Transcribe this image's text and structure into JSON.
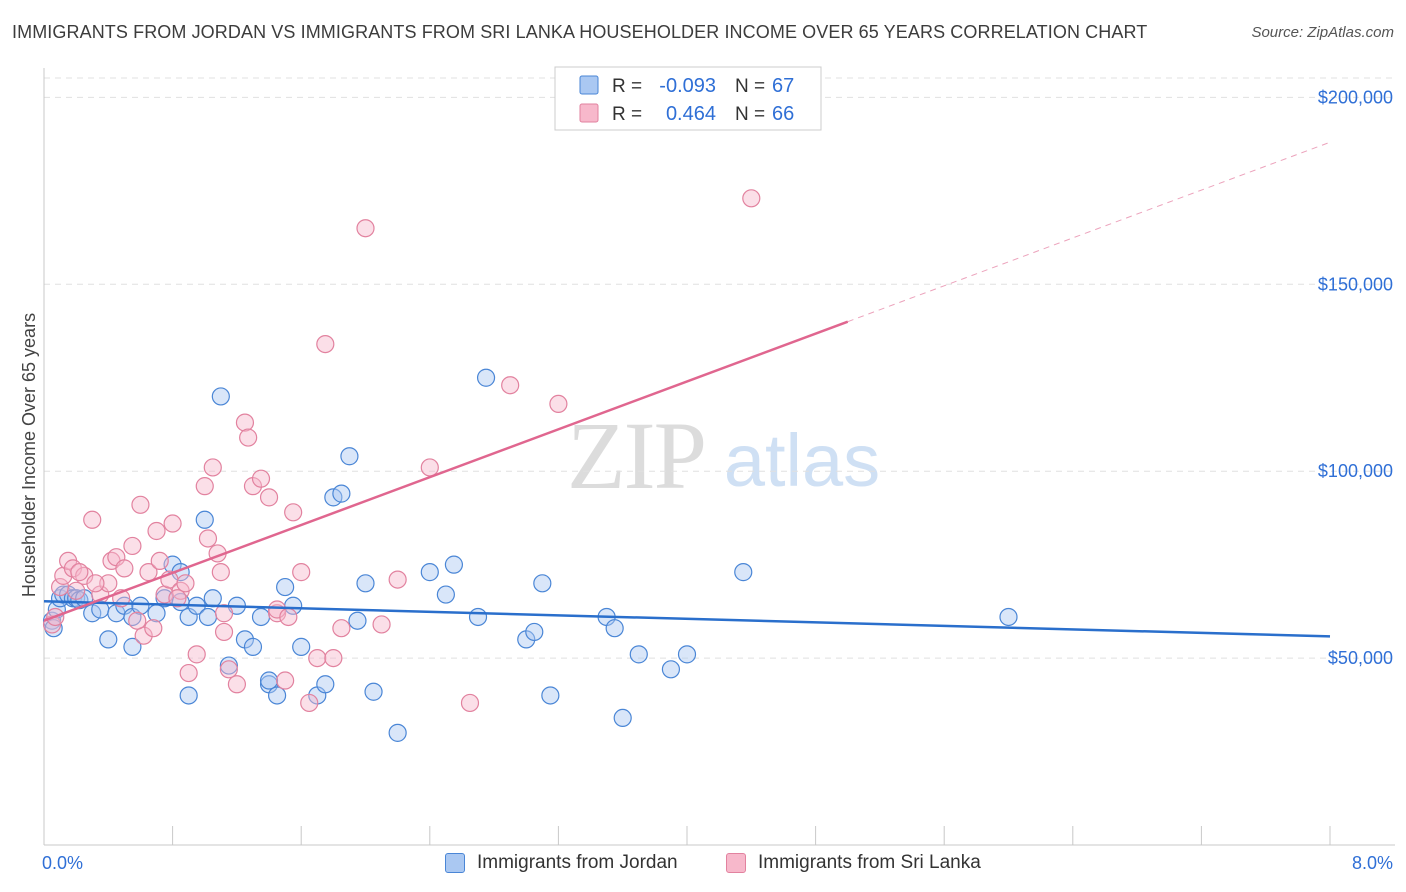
{
  "title": "IMMIGRANTS FROM JORDAN VS IMMIGRANTS FROM SRI LANKA HOUSEHOLDER INCOME OVER 65 YEARS CORRELATION CHART",
  "source": "Source: ZipAtlas.com",
  "watermark": {
    "zip": "ZIP",
    "atlas": "atlas"
  },
  "legend": {
    "rows": [
      {
        "r_label": "R =",
        "r_value": "-0.093",
        "n_label": "N =",
        "n_value": "67"
      },
      {
        "r_label": "R =",
        "r_value": "0.464",
        "n_label": "N =",
        "n_value": "66"
      }
    ]
  },
  "colors": {
    "jordan_fill": "#aac8f2",
    "jordan_stroke": "#4a86d6",
    "jordan_line": "#2a6fcc",
    "srilanka_fill": "#f7b8cb",
    "srilanka_stroke": "#e2829f",
    "srilanka_line": "#e0668f",
    "value_text": "#2f6fd6",
    "grid": "#e0e0e0"
  },
  "chart_data": {
    "type": "scatter",
    "xlabel": "",
    "ylabel": "Householder Income Over 65 years",
    "xlim": [
      0,
      8
    ],
    "ylim": [
      0,
      210000
    ],
    "x_tick_labels": [
      "0.0%",
      "8.0%"
    ],
    "y_ticks": [
      50000,
      100000,
      150000,
      200000
    ],
    "y_tick_labels": [
      "$50,000",
      "$100,000",
      "$150,000",
      "$200,000"
    ],
    "grid": "horizontal dashed",
    "legend_position": "top-center",
    "series": [
      {
        "name": "Immigrants from Jordan",
        "r": -0.093,
        "n": 67,
        "trend": {
          "x": [
            0,
            8
          ],
          "y": [
            65200,
            55800
          ]
        },
        "points": [
          [
            0.05,
            60000
          ],
          [
            0.06,
            58000
          ],
          [
            0.08,
            63000
          ],
          [
            0.1,
            66000
          ],
          [
            0.12,
            67000
          ],
          [
            0.15,
            67000
          ],
          [
            0.18,
            66000
          ],
          [
            0.2,
            66000
          ],
          [
            0.22,
            65500
          ],
          [
            0.3,
            62000
          ],
          [
            0.35,
            63000
          ],
          [
            0.45,
            62000
          ],
          [
            0.5,
            64000
          ],
          [
            0.55,
            61000
          ],
          [
            0.6,
            64000
          ],
          [
            0.7,
            62000
          ],
          [
            0.75,
            66000
          ],
          [
            0.8,
            75000
          ],
          [
            0.85,
            73000
          ],
          [
            0.9,
            61000
          ],
          [
            0.95,
            64000
          ],
          [
            1.0,
            87000
          ],
          [
            1.05,
            66000
          ],
          [
            1.1,
            120000
          ],
          [
            1.15,
            48000
          ],
          [
            1.2,
            64000
          ],
          [
            1.25,
            55000
          ],
          [
            1.3,
            53000
          ],
          [
            1.35,
            61000
          ],
          [
            1.4,
            43000
          ],
          [
            1.45,
            40000
          ],
          [
            1.5,
            69000
          ],
          [
            1.55,
            64000
          ],
          [
            1.6,
            53000
          ],
          [
            1.7,
            40000
          ],
          [
            1.75,
            43000
          ],
          [
            1.8,
            93000
          ],
          [
            1.85,
            94000
          ],
          [
            1.9,
            104000
          ],
          [
            1.95,
            60000
          ],
          [
            2.0,
            70000
          ],
          [
            2.05,
            41000
          ],
          [
            2.2,
            30000
          ],
          [
            2.4,
            73000
          ],
          [
            2.5,
            67000
          ],
          [
            2.55,
            75000
          ],
          [
            2.7,
            61000
          ],
          [
            2.75,
            125000
          ],
          [
            3.0,
            55000
          ],
          [
            3.05,
            57000
          ],
          [
            3.1,
            70000
          ],
          [
            3.15,
            40000
          ],
          [
            3.5,
            61000
          ],
          [
            3.55,
            58000
          ],
          [
            3.6,
            34000
          ],
          [
            3.7,
            51000
          ],
          [
            3.9,
            47000
          ],
          [
            4.0,
            51000
          ],
          [
            4.35,
            73000
          ],
          [
            6.0,
            61000
          ],
          [
            0.9,
            40000
          ],
          [
            0.55,
            53000
          ],
          [
            0.4,
            55000
          ],
          [
            0.25,
            66000
          ],
          [
            1.02,
            61000
          ],
          [
            0.85,
            65000
          ],
          [
            1.4,
            44000
          ]
        ]
      },
      {
        "name": "Immigrants from Sri Lanka",
        "r": 0.464,
        "n": 66,
        "trend": {
          "x": [
            0,
            5
          ],
          "y": [
            60000,
            140000
          ]
        },
        "trend_extension": {
          "x": [
            5,
            8
          ],
          "y": [
            140000,
            188000
          ]
        },
        "points": [
          [
            0.05,
            59000
          ],
          [
            0.07,
            61000
          ],
          [
            0.1,
            69000
          ],
          [
            0.12,
            72000
          ],
          [
            0.15,
            76000
          ],
          [
            0.18,
            74000
          ],
          [
            0.2,
            68000
          ],
          [
            0.25,
            72000
          ],
          [
            0.3,
            87000
          ],
          [
            0.35,
            67000
          ],
          [
            0.4,
            70000
          ],
          [
            0.42,
            76000
          ],
          [
            0.45,
            77000
          ],
          [
            0.5,
            74000
          ],
          [
            0.55,
            80000
          ],
          [
            0.6,
            91000
          ],
          [
            0.62,
            56000
          ],
          [
            0.65,
            73000
          ],
          [
            0.7,
            84000
          ],
          [
            0.72,
            76000
          ],
          [
            0.75,
            67000
          ],
          [
            0.78,
            71000
          ],
          [
            0.8,
            86000
          ],
          [
            0.85,
            68000
          ],
          [
            0.88,
            70000
          ],
          [
            0.9,
            46000
          ],
          [
            0.95,
            51000
          ],
          [
            1.0,
            96000
          ],
          [
            1.02,
            82000
          ],
          [
            1.05,
            101000
          ],
          [
            1.08,
            78000
          ],
          [
            1.1,
            73000
          ],
          [
            1.12,
            57000
          ],
          [
            1.15,
            47000
          ],
          [
            1.2,
            43000
          ],
          [
            1.25,
            113000
          ],
          [
            1.27,
            109000
          ],
          [
            1.3,
            96000
          ],
          [
            1.35,
            98000
          ],
          [
            1.4,
            93000
          ],
          [
            1.45,
            62000
          ],
          [
            1.5,
            44000
          ],
          [
            1.55,
            89000
          ],
          [
            1.6,
            73000
          ],
          [
            1.65,
            38000
          ],
          [
            1.7,
            50000
          ],
          [
            1.75,
            134000
          ],
          [
            1.8,
            50000
          ],
          [
            1.85,
            58000
          ],
          [
            2.0,
            165000
          ],
          [
            2.1,
            59000
          ],
          [
            2.2,
            71000
          ],
          [
            2.4,
            101000
          ],
          [
            2.65,
            38000
          ],
          [
            2.9,
            123000
          ],
          [
            3.2,
            118000
          ],
          [
            4.4,
            173000
          ],
          [
            1.45,
            63000
          ],
          [
            1.52,
            61000
          ],
          [
            0.68,
            58000
          ],
          [
            0.32,
            70000
          ],
          [
            0.48,
            66000
          ],
          [
            0.58,
            60000
          ],
          [
            0.83,
            66000
          ],
          [
            1.12,
            62000
          ],
          [
            0.22,
            73000
          ]
        ]
      }
    ]
  }
}
